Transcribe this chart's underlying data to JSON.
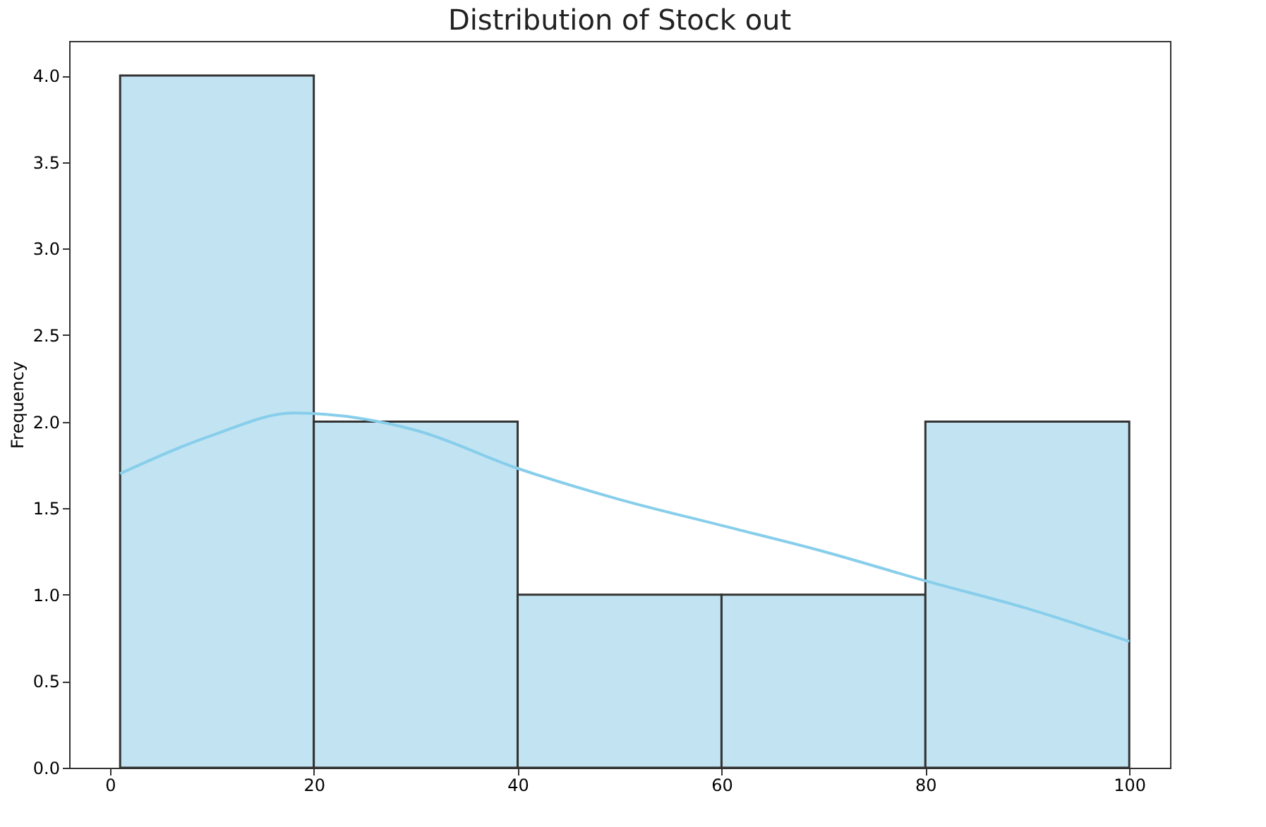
{
  "chart_data": {
    "type": "histogram",
    "title": "Distribution of Stock out",
    "ylabel": "Frequency",
    "bins": [
      1,
      20,
      40,
      60,
      80,
      100
    ],
    "values": [
      4,
      2,
      1,
      1,
      2
    ],
    "color": "#c2e3f2",
    "series": [
      {
        "type": "line",
        "color": "#87ceeb",
        "x": [
          1,
          10,
          18,
          30,
          40,
          50,
          60,
          70,
          80,
          90,
          100
        ],
        "values": [
          1.7,
          1.92,
          2.05,
          1.95,
          1.73,
          1.55,
          1.4,
          1.25,
          1.08,
          0.92,
          0.73
        ]
      }
    ],
    "xlim": [
      -4,
      104
    ],
    "xticks": [
      0,
      20,
      40,
      60,
      80,
      100
    ],
    "ylim": [
      0,
      4.2
    ],
    "yticks": [
      {
        "value": 0,
        "label": "0.0"
      },
      0.5,
      {
        "value": 1,
        "label": "1.0"
      },
      1.5,
      {
        "value": 2,
        "label": "2.0"
      },
      2.5,
      {
        "value": 3,
        "label": "3.0"
      },
      3.5,
      {
        "value": 4,
        "label": "4.0"
      }
    ],
    "grid": false
  }
}
